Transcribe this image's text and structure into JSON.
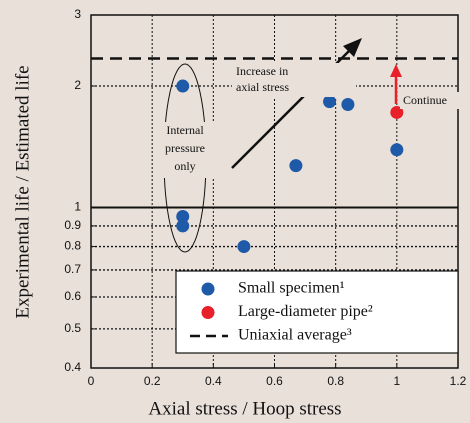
{
  "chart_data": {
    "type": "scatter",
    "xlabel": "Axial stress / Hoop stress",
    "ylabel": "Experimental life / Estimated life",
    "xlim": [
      0,
      1.2
    ],
    "xticks": [
      0,
      0.2,
      0.4,
      0.6,
      0.8,
      1,
      1.2
    ],
    "ylim": [
      0.4,
      3
    ],
    "yticks": [
      0.4,
      0.5,
      0.6,
      0.7,
      0.8,
      0.9,
      1,
      2,
      3
    ],
    "ylog": true,
    "grid": true,
    "series": [
      {
        "name": "Small specimen¹",
        "color": "#1f5aa8",
        "x": [
          0.3,
          0.3,
          0.3,
          0.5,
          0.67,
          0.78,
          0.84,
          1
        ],
        "values": [
          2,
          0.95,
          0.9,
          0.8,
          1.27,
          1.83,
          1.8,
          1.39
        ]
      },
      {
        "name": "Large-diameter pipe²",
        "color": "#e8202a",
        "x": [
          1
        ],
        "values": [
          1.72
        ]
      }
    ],
    "hline": {
      "name": "Uniaxial average³",
      "value": 2.34,
      "color": "#111111"
    },
    "annotations": [
      {
        "lines": [
          "Increase in",
          "axial stress"
        ]
      },
      {
        "lines": [
          "Continue"
        ]
      },
      {
        "lines": [
          "Internal",
          "pressure",
          "only"
        ]
      }
    ],
    "legend": "lower right"
  }
}
